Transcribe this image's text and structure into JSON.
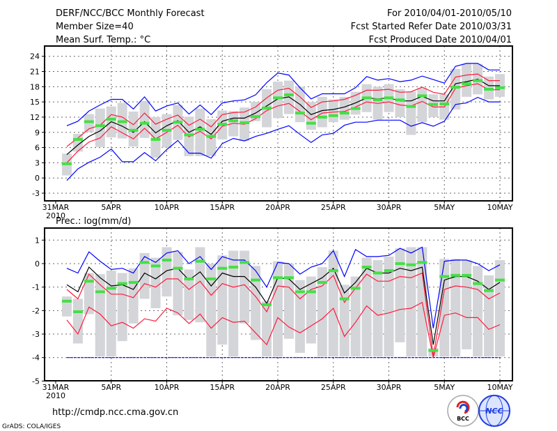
{
  "header": {
    "title": "DERF/NCC/BCC Monthly Forecast",
    "member_size": "Member Size=40",
    "variable_top": "Mean Surf. Temp.: °C",
    "period": "For 2010/04/01-2010/05/10",
    "started": "Fcst Started Refer Date 2010/03/31",
    "produced": "Fcst Produced Date 2010/04/01"
  },
  "footer": {
    "url": "http://cmdp.ncc.cma.gov.cn",
    "grads": "GrADS: COLA/IGES",
    "logo_bcc": "BCC",
    "logo_ncc": "NCC"
  },
  "colors": {
    "max_min": "#0000ff",
    "spread": "#ff1a3c",
    "mean": "#000000",
    "obs": "#44e044",
    "box": "#d4d5d9"
  },
  "chart_data": [
    {
      "type": "line",
      "title": "Mean Surf. Temp.: °C",
      "x_tick_labels": [
        "31MAR",
        "5APR",
        "10APR",
        "15APR",
        "20APR",
        "25APR",
        "30APR",
        "5MAY",
        "10MAY"
      ],
      "x_year_label": "2010",
      "x_days_from_mar31": [
        1,
        2,
        3,
        4,
        5,
        6,
        7,
        8,
        9,
        10,
        11,
        12,
        13,
        14,
        15,
        16,
        17,
        18,
        19,
        20,
        21,
        22,
        23,
        24,
        25,
        26,
        27,
        28,
        29,
        30,
        31,
        32,
        33,
        34,
        35,
        36,
        37,
        38,
        39,
        40
      ],
      "ylim": [
        -3,
        25
      ],
      "y_ticks": [
        -3,
        0,
        3,
        6,
        9,
        12,
        15,
        18,
        21,
        24
      ],
      "grid": true,
      "series": [
        {
          "name": "max",
          "color": "#0000ff",
          "values": [
            10.3,
            11.2,
            13.2,
            14.4,
            15.5,
            15.5,
            13.6,
            16.0,
            13.2,
            14.2,
            14.8,
            12.6,
            14.4,
            12.5,
            14.8,
            15.2,
            15.4,
            16.4,
            18.8,
            20.7,
            20.3,
            17.8,
            15.6,
            16.6,
            16.6,
            16.6,
            17.8,
            20.0,
            19.3,
            19.6,
            19.0,
            19.3,
            20.1,
            19.4,
            18.7,
            22.0,
            22.6,
            22.6,
            21.3,
            21.3
          ]
        },
        {
          "name": "min",
          "color": "#0000ff",
          "values": [
            -0.5,
            1.8,
            3.1,
            4.1,
            5.7,
            3.2,
            3.2,
            5.0,
            3.4,
            5.6,
            7.4,
            4.9,
            4.9,
            3.9,
            6.8,
            7.8,
            7.3,
            8.2,
            8.8,
            9.6,
            10.3,
            8.6,
            7.0,
            8.5,
            8.8,
            10.4,
            11.0,
            11.0,
            11.4,
            11.4,
            11.4,
            10.2,
            10.9,
            10.2,
            11.2,
            14.5,
            14.8,
            15.9,
            15.0,
            15.0
          ]
        },
        {
          "name": "upper",
          "color": "#ff1a3c",
          "values": [
            6.2,
            7.9,
            9.7,
            10.4,
            12.5,
            12.0,
            10.5,
            12.8,
            10.6,
            11.6,
            12.4,
            10.4,
            11.6,
            10.1,
            12.5,
            12.9,
            13.0,
            14.0,
            15.8,
            17.3,
            17.7,
            16.0,
            13.9,
            15.0,
            15.2,
            15.5,
            16.3,
            17.3,
            17.3,
            17.5,
            16.9,
            17.0,
            17.9,
            16.9,
            16.5,
            19.9,
            20.3,
            20.5,
            19.2,
            19.2
          ]
        },
        {
          "name": "lower",
          "color": "#ff1a3c",
          "values": [
            3.0,
            5.3,
            7.1,
            7.9,
            10.1,
            8.9,
            7.7,
            9.8,
            7.7,
            9.0,
            10.4,
            8.1,
            9.2,
            7.7,
            10.2,
            10.8,
            10.6,
            11.7,
            13.3,
            14.2,
            14.7,
            13.1,
            11.5,
            12.8,
            13.0,
            13.1,
            14.0,
            15.0,
            14.7,
            15.0,
            14.4,
            14.2,
            15.1,
            14.0,
            14.0,
            17.7,
            18.2,
            18.6,
            17.4,
            17.4
          ]
        },
        {
          "name": "mean",
          "color": "#000000",
          "values": [
            4.6,
            6.5,
            8.2,
            9.3,
            11.1,
            10.2,
            9.0,
            11.1,
            8.9,
            10.3,
            11.3,
            9.0,
            10.1,
            8.6,
            11.2,
            11.8,
            11.8,
            12.8,
            14.2,
            15.6,
            16.0,
            14.5,
            12.5,
            13.3,
            13.5,
            14.0,
            14.8,
            15.8,
            15.6,
            15.8,
            15.2,
            15.2,
            16.1,
            15.2,
            15.2,
            18.6,
            19.0,
            19.5,
            18.2,
            18.2
          ]
        },
        {
          "name": "obs",
          "color": "#44e044",
          "values": [
            2.8,
            7.6,
            11.1,
            10.3,
            11.6,
            11.1,
            9.4,
            10.8,
            7.6,
            9.4,
            11.0,
            8.5,
            9.6,
            8.2,
            10.6,
            11.3,
            10.9,
            12.1,
            13.8,
            15.8,
            16.4,
            12.8,
            10.8,
            12.0,
            12.3,
            12.8,
            13.7,
            15.8,
            15.4,
            15.8,
            15.4,
            14.1,
            16.2,
            14.5,
            14.6,
            17.9,
            18.6,
            19.2,
            17.5,
            17.8
          ]
        }
      ],
      "box_low": [
        0.5,
        5.2,
        9.0,
        6.1,
        8.0,
        7.8,
        6.2,
        7.9,
        4.0,
        6.0,
        7.5,
        4.3,
        4.3,
        4.3,
        7.6,
        8.2,
        7.3,
        11.2,
        10.0,
        11.8,
        12.6,
        11.0,
        9.5,
        10.0,
        11.0,
        11.5,
        12.5,
        13.0,
        11.5,
        13.0,
        12.0,
        8.5,
        11.0,
        12.0,
        11.5,
        13.5,
        16.0,
        16.5,
        15.5,
        16.0
      ],
      "box_high": [
        4.8,
        8.7,
        12.6,
        13.7,
        14.1,
        14.8,
        13.1,
        15.2,
        12.0,
        12.6,
        14.4,
        12.1,
        13.7,
        11.6,
        13.3,
        13.2,
        13.9,
        15.0,
        17.5,
        19.0,
        19.2,
        18.0,
        15.0,
        16.0,
        15.5,
        16.0,
        17.0,
        18.5,
        18.0,
        18.5,
        17.5,
        17.0,
        17.8,
        16.5,
        16.5,
        21.5,
        22.5,
        22.5,
        20.0,
        20.5
      ]
    },
    {
      "type": "line",
      "title": "Prec.: log(mm/d)",
      "x_tick_labels": [
        "31MAR",
        "5APR",
        "10APR",
        "15APR",
        "20APR",
        "25APR",
        "30APR",
        "5MAY",
        "10MAY"
      ],
      "x_year_label": "2010",
      "ylim": [
        -5,
        1.4
      ],
      "y_ticks": [
        -5,
        -4,
        -3,
        -2,
        -1,
        0,
        1
      ],
      "grid": true,
      "series": [
        {
          "name": "max",
          "color": "#0000ff",
          "values": [
            -0.2,
            -0.4,
            0.5,
            0.1,
            -0.25,
            -0.2,
            -0.4,
            0.3,
            0.05,
            0.45,
            0.55,
            0.0,
            0.3,
            -0.25,
            0.3,
            0.15,
            0.15,
            -0.3,
            -1.0,
            0.05,
            0.0,
            -0.45,
            -0.15,
            0.0,
            0.55,
            -0.55,
            0.6,
            0.3,
            0.3,
            0.35,
            0.65,
            0.45,
            0.7,
            -2.75,
            0.1,
            0.15,
            0.15,
            0.0,
            -0.3,
            -0.05
          ]
        },
        {
          "name": "min",
          "color": "#0000ff",
          "values": [
            -4,
            -4,
            -4,
            -4,
            -4,
            -4,
            -4,
            -4,
            -4,
            -4,
            -4,
            -4,
            -4,
            -4,
            -4,
            -4,
            -4,
            -4,
            -4,
            -4,
            -4,
            -4,
            -4,
            -4,
            -4,
            -4,
            -4,
            -4,
            -4,
            -4,
            -4,
            -4,
            -4,
            -4,
            -4,
            -4,
            -4,
            -4,
            -4,
            -4
          ]
        },
        {
          "name": "upper",
          "color": "#ff1a3c",
          "values": [
            -1.1,
            -1.5,
            -0.45,
            -0.9,
            -1.3,
            -1.3,
            -1.45,
            -0.85,
            -1.0,
            -0.65,
            -0.65,
            -1.1,
            -0.75,
            -1.35,
            -0.85,
            -1.0,
            -0.9,
            -1.4,
            -2.05,
            -0.95,
            -1.0,
            -1.5,
            -1.1,
            -0.95,
            -0.5,
            -1.65,
            -1.05,
            -0.45,
            -0.75,
            -0.75,
            -0.55,
            -0.6,
            -0.4,
            -3.95,
            -1.1,
            -0.95,
            -1.0,
            -1.1,
            -1.5,
            -1.25
          ]
        },
        {
          "name": "lower",
          "color": "#ff1a3c",
          "values": [
            -2.4,
            -3.0,
            -1.85,
            -2.15,
            -2.65,
            -2.5,
            -2.75,
            -2.35,
            -2.45,
            -1.9,
            -2.1,
            -2.55,
            -2.15,
            -2.75,
            -2.3,
            -2.5,
            -2.45,
            -2.95,
            -3.45,
            -2.3,
            -2.7,
            -2.95,
            -2.65,
            -2.35,
            -1.9,
            -3.1,
            -2.5,
            -1.8,
            -2.2,
            -2.1,
            -1.95,
            -1.9,
            -1.65,
            -4.0,
            -2.2,
            -2.1,
            -2.3,
            -2.3,
            -2.8,
            -2.6
          ]
        },
        {
          "name": "mean",
          "color": "#000000",
          "values": [
            -0.9,
            -1.2,
            -0.15,
            -0.6,
            -0.95,
            -0.9,
            -1.1,
            -0.4,
            -0.65,
            -0.3,
            -0.2,
            -0.7,
            -0.35,
            -0.95,
            -0.4,
            -0.55,
            -0.55,
            -1.0,
            -1.7,
            -0.6,
            -0.65,
            -1.1,
            -0.85,
            -0.6,
            -0.2,
            -1.25,
            -0.8,
            -0.2,
            -0.4,
            -0.4,
            -0.2,
            -0.3,
            -0.15,
            -3.45,
            -0.7,
            -0.55,
            -0.55,
            -0.75,
            -1.1,
            -0.8
          ]
        },
        {
          "name": "obs",
          "color": "#44e044",
          "values": [
            -1.6,
            -2.05,
            -0.75,
            -1.2,
            -1.05,
            -0.85,
            -0.8,
            0.05,
            -0.1,
            0.15,
            -0.2,
            -0.65,
            0.1,
            -0.65,
            -0.2,
            -0.15,
            0.05,
            -0.7,
            -1.75,
            -0.6,
            -0.6,
            -1.2,
            -1.2,
            -0.8,
            -0.3,
            -1.5,
            -1.05,
            -0.15,
            -0.4,
            -0.3,
            0.0,
            -0.05,
            0.05,
            -3.7,
            -0.55,
            -0.5,
            -0.5,
            -0.85,
            -1.15,
            -0.7
          ]
        }
      ],
      "box_low": [
        -2.25,
        -3.4,
        -2.15,
        -3.95,
        -3.95,
        -3.3,
        -2.55,
        -1.5,
        -1.9,
        -1.4,
        -2.2,
        -2.4,
        -2.5,
        -3.95,
        -3.45,
        -3.95,
        -2.55,
        -3.25,
        -3.95,
        -3.95,
        -3.2,
        -3.8,
        -3.4,
        -3.95,
        -3.95,
        -3.95,
        -3.95,
        -3.95,
        -3.95,
        -3.95,
        -3.35,
        -3.95,
        -3.95,
        -3.95,
        -3.95,
        -3.95,
        -3.65,
        -3.95,
        -3.95,
        -3.95
      ],
      "box_high": [
        -1.4,
        -1.5,
        -0.4,
        -0.45,
        -0.3,
        -0.4,
        -0.2,
        0.45,
        0.25,
        0.7,
        0.5,
        -0.25,
        0.7,
        0.0,
        0.35,
        0.55,
        0.55,
        -0.1,
        -1.6,
        0.1,
        0.0,
        -0.7,
        -0.55,
        -0.15,
        0.55,
        -0.9,
        -0.55,
        0.25,
        0.15,
        0.3,
        0.65,
        0.7,
        0.7,
        -3.6,
        0.2,
        0.2,
        0.15,
        -0.1,
        -0.5,
        0.15
      ]
    }
  ]
}
